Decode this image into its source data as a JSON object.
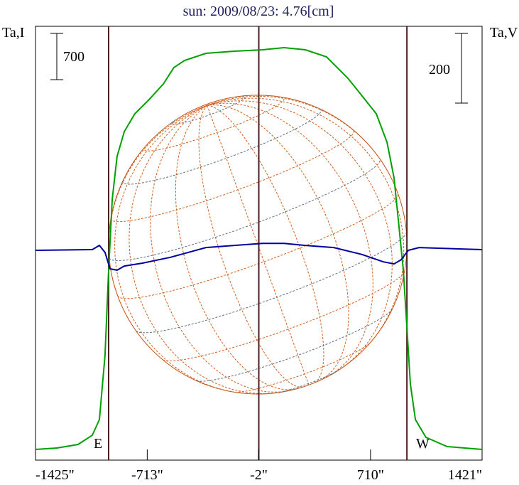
{
  "chart_data": {
    "type": "line",
    "title": "sun: 2009/08/23: 4.76[cm]",
    "ylabel_left": "Ta,I",
    "ylabel_right": "Ta,V",
    "xlim": [
      -1425,
      1421
    ],
    "x_ticks": [
      "-1425\"",
      "-713\"",
      "-2\"",
      "710\"",
      "1421\""
    ],
    "x_tick_values": [
      -1425,
      -713,
      -2,
      710,
      1421
    ],
    "limb_lines": [
      -959,
      -2,
      942
    ],
    "limb_labels": {
      "east": "E",
      "west": "W"
    },
    "scale_bars": {
      "left": {
        "label": "700",
        "value": 700
      },
      "right": {
        "label": "200",
        "value": 200
      }
    },
    "series": [
      {
        "name": "Ta,I",
        "color": "#00a000",
        "x": [
          -1425,
          -1289,
          -1154,
          -1063,
          -1018,
          -982,
          -959,
          -936,
          -905,
          -859,
          -792,
          -701,
          -610,
          -543,
          -475,
          -339,
          -158,
          23,
          159,
          295,
          430,
          566,
          657,
          747,
          815,
          860,
          892,
          919,
          942,
          964,
          996,
          1063,
          1199,
          1421
        ],
        "y": [
          0,
          22,
          75,
          215,
          452,
          1422,
          2714,
          3791,
          4437,
          4814,
          5083,
          5299,
          5536,
          5783,
          5891,
          5999,
          6031,
          6053,
          6085,
          6053,
          5945,
          5622,
          5353,
          5083,
          4653,
          4114,
          3360,
          2714,
          1852,
          991,
          452,
          183,
          43,
          0
        ]
      },
      {
        "name": "Ta,V",
        "color": "#0000a0",
        "x": [
          -1425,
          -1063,
          -1018,
          -982,
          -950,
          -905,
          -859,
          -746,
          -565,
          -339,
          -158,
          23,
          159,
          295,
          476,
          657,
          792,
          860,
          905,
          951,
          1019,
          1421
        ],
        "y": [
          0,
          2,
          14,
          -6,
          -53,
          -57,
          -45,
          -37,
          -20,
          8,
          14,
          20,
          20,
          14,
          8,
          -12,
          -33,
          -39,
          -27,
          0,
          8,
          2
        ]
      }
    ],
    "grid": false,
    "colors": {
      "axis": "#000000",
      "limb": "#4a2020",
      "disk": "#c05010",
      "grid_orange": "#d06020",
      "grid_gray": "#607080",
      "title": "#202060"
    }
  }
}
